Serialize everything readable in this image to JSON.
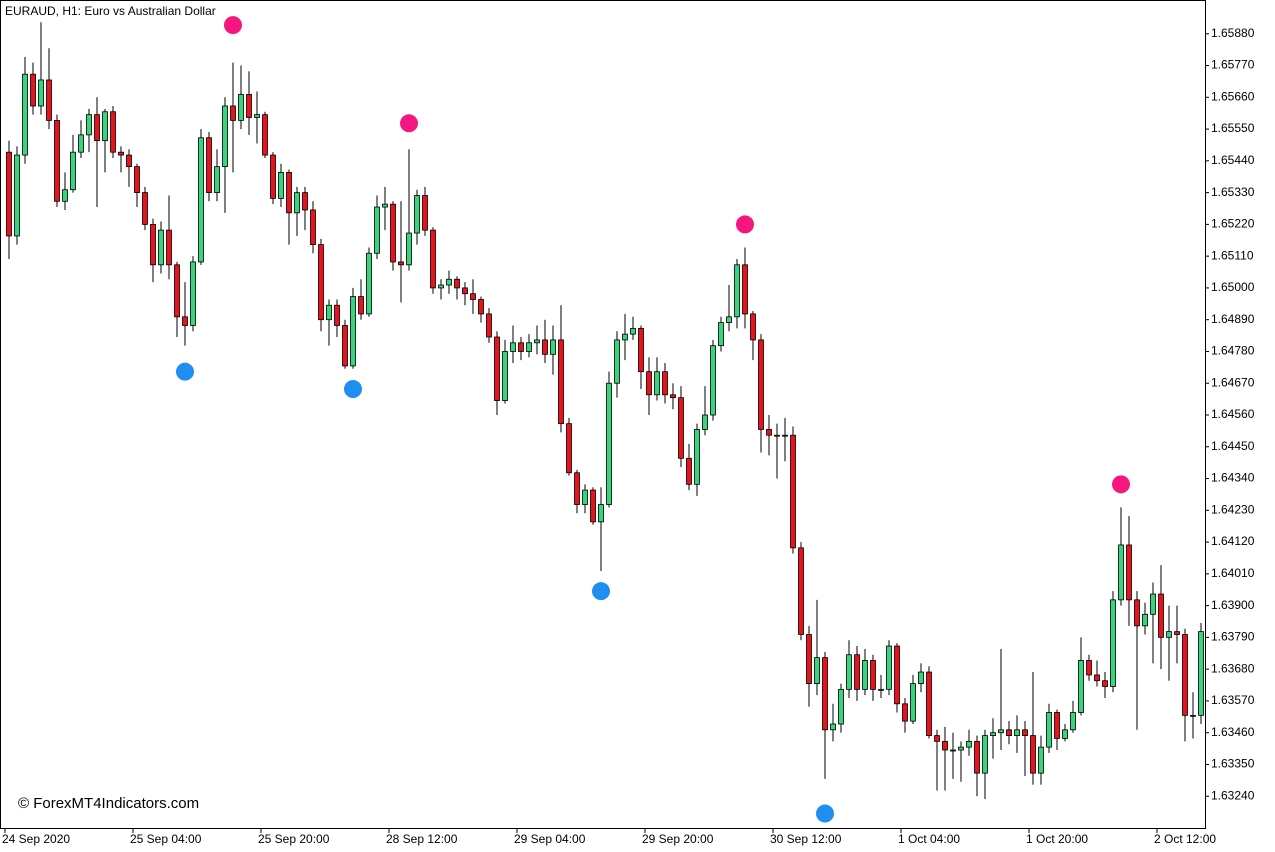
{
  "chart_data": {
    "type": "candlestick",
    "title": "EURAUD, H1:  Euro vs Australian Dollar",
    "watermark": "© ForexMT4Indicators.com",
    "ohlc": [
      [
        1.6547,
        1.6551,
        1.651,
        1.6518
      ],
      [
        1.6518,
        1.6549,
        1.6515,
        1.6546
      ],
      [
        1.6546,
        1.658,
        1.6543,
        1.6574
      ],
      [
        1.6574,
        1.6578,
        1.656,
        1.6563
      ],
      [
        1.6563,
        1.6592,
        1.656,
        1.6572
      ],
      [
        1.6572,
        1.6583,
        1.6555,
        1.6558
      ],
      [
        1.6558,
        1.656,
        1.6528,
        1.653
      ],
      [
        1.653,
        1.654,
        1.6527,
        1.6534
      ],
      [
        1.6534,
        1.6553,
        1.6533,
        1.6547
      ],
      [
        1.6547,
        1.6558,
        1.6545,
        1.6553
      ],
      [
        1.6553,
        1.6562,
        1.6547,
        1.656
      ],
      [
        1.656,
        1.6566,
        1.6528,
        1.6551
      ],
      [
        1.6551,
        1.6562,
        1.654,
        1.6561
      ],
      [
        1.6561,
        1.6563,
        1.6545,
        1.6547
      ],
      [
        1.6547,
        1.6549,
        1.654,
        1.6546
      ],
      [
        1.6546,
        1.6548,
        1.6535,
        1.6542
      ],
      [
        1.6542,
        1.6543,
        1.6528,
        1.6533
      ],
      [
        1.6533,
        1.6535,
        1.652,
        1.6522
      ],
      [
        1.6522,
        1.6524,
        1.6502,
        1.6508
      ],
      [
        1.6508,
        1.6523,
        1.6505,
        1.652
      ],
      [
        1.652,
        1.6532,
        1.6503,
        1.6508
      ],
      [
        1.6508,
        1.6509,
        1.6483,
        1.649
      ],
      [
        1.649,
        1.6502,
        1.648,
        1.6487
      ],
      [
        1.6487,
        1.6511,
        1.6485,
        1.6509
      ],
      [
        1.6509,
        1.6555,
        1.6508,
        1.6552
      ],
      [
        1.6552,
        1.6554,
        1.653,
        1.6533
      ],
      [
        1.6533,
        1.6548,
        1.653,
        1.6542
      ],
      [
        1.6542,
        1.6566,
        1.6526,
        1.6563
      ],
      [
        1.6563,
        1.6578,
        1.654,
        1.6558
      ],
      [
        1.6558,
        1.6577,
        1.6555,
        1.6567
      ],
      [
        1.6567,
        1.6575,
        1.6553,
        1.6559
      ],
      [
        1.6559,
        1.6568,
        1.655,
        1.656
      ],
      [
        1.656,
        1.6561,
        1.6545,
        1.6546
      ],
      [
        1.6546,
        1.6547,
        1.6529,
        1.6531
      ],
      [
        1.6531,
        1.6543,
        1.6528,
        1.654
      ],
      [
        1.654,
        1.6541,
        1.6515,
        1.6526
      ],
      [
        1.6526,
        1.6535,
        1.6518,
        1.6533
      ],
      [
        1.6533,
        1.6535,
        1.652,
        1.6527
      ],
      [
        1.6527,
        1.653,
        1.6512,
        1.6515
      ],
      [
        1.6515,
        1.6517,
        1.6485,
        1.6489
      ],
      [
        1.6489,
        1.6496,
        1.648,
        1.6494
      ],
      [
        1.6494,
        1.6496,
        1.6483,
        1.6487
      ],
      [
        1.6487,
        1.6489,
        1.6472,
        1.6473
      ],
      [
        1.6473,
        1.65,
        1.6472,
        1.6497
      ],
      [
        1.6497,
        1.6503,
        1.6489,
        1.6491
      ],
      [
        1.6491,
        1.6514,
        1.649,
        1.6512
      ],
      [
        1.6512,
        1.6532,
        1.651,
        1.6528
      ],
      [
        1.6528,
        1.6535,
        1.652,
        1.6529
      ],
      [
        1.6529,
        1.653,
        1.6506,
        1.6509
      ],
      [
        1.6509,
        1.653,
        1.6495,
        1.6508
      ],
      [
        1.6508,
        1.6548,
        1.6506,
        1.6519
      ],
      [
        1.6519,
        1.6534,
        1.6515,
        1.6532
      ],
      [
        1.6532,
        1.6535,
        1.6518,
        1.652
      ],
      [
        1.652,
        1.6521,
        1.6498,
        1.65
      ],
      [
        1.65,
        1.6503,
        1.6496,
        1.6501
      ],
      [
        1.6501,
        1.6506,
        1.6498,
        1.6503
      ],
      [
        1.6503,
        1.6504,
        1.6496,
        1.65
      ],
      [
        1.65,
        1.6502,
        1.6494,
        1.6498
      ],
      [
        1.6498,
        1.6503,
        1.6491,
        1.6496
      ],
      [
        1.6496,
        1.6497,
        1.6488,
        1.6491
      ],
      [
        1.6491,
        1.6493,
        1.6481,
        1.6483
      ],
      [
        1.6483,
        1.6485,
        1.6456,
        1.6461
      ],
      [
        1.6461,
        1.6482,
        1.646,
        1.6478
      ],
      [
        1.6478,
        1.6487,
        1.6474,
        1.6481
      ],
      [
        1.6481,
        1.6483,
        1.6475,
        1.6478
      ],
      [
        1.6478,
        1.6484,
        1.6476,
        1.6481
      ],
      [
        1.6481,
        1.6487,
        1.6477,
        1.6482
      ],
      [
        1.6482,
        1.6489,
        1.6474,
        1.6477
      ],
      [
        1.6477,
        1.6487,
        1.647,
        1.6482
      ],
      [
        1.6482,
        1.6494,
        1.645,
        1.6453
      ],
      [
        1.6453,
        1.6455,
        1.6435,
        1.6436
      ],
      [
        1.6436,
        1.6437,
        1.6422,
        1.6425
      ],
      [
        1.6425,
        1.6432,
        1.6422,
        1.643
      ],
      [
        1.643,
        1.6431,
        1.6418,
        1.6419
      ],
      [
        1.6419,
        1.6431,
        1.6402,
        1.6425
      ],
      [
        1.6425,
        1.6471,
        1.6424,
        1.6467
      ],
      [
        1.6467,
        1.6485,
        1.6462,
        1.6482
      ],
      [
        1.6482,
        1.6491,
        1.6475,
        1.6484
      ],
      [
        1.6484,
        1.649,
        1.6482,
        1.6486
      ],
      [
        1.6486,
        1.6487,
        1.6465,
        1.6471
      ],
      [
        1.6471,
        1.6476,
        1.6456,
        1.6463
      ],
      [
        1.6463,
        1.6476,
        1.6461,
        1.6471
      ],
      [
        1.6471,
        1.6474,
        1.646,
        1.6463
      ],
      [
        1.6463,
        1.6467,
        1.6458,
        1.6462
      ],
      [
        1.6462,
        1.6466,
        1.6438,
        1.6441
      ],
      [
        1.6441,
        1.6446,
        1.643,
        1.6432
      ],
      [
        1.6432,
        1.6453,
        1.6428,
        1.6451
      ],
      [
        1.6451,
        1.6466,
        1.6449,
        1.6456
      ],
      [
        1.6456,
        1.6482,
        1.6454,
        1.648
      ],
      [
        1.648,
        1.649,
        1.6478,
        1.6488
      ],
      [
        1.6488,
        1.6501,
        1.6485,
        1.649
      ],
      [
        1.649,
        1.651,
        1.6486,
        1.6508
      ],
      [
        1.6508,
        1.6514,
        1.6486,
        1.6491
      ],
      [
        1.6491,
        1.6492,
        1.6475,
        1.6482
      ],
      [
        1.6482,
        1.6484,
        1.6443,
        1.6451
      ],
      [
        1.6451,
        1.6456,
        1.6442,
        1.6449
      ],
      [
        1.6449,
        1.6453,
        1.6434,
        1.6449
      ],
      [
        1.6449,
        1.6455,
        1.644,
        1.6449
      ],
      [
        1.6449,
        1.6452,
        1.6408,
        1.641
      ],
      [
        1.641,
        1.6412,
        1.6378,
        1.638
      ],
      [
        1.638,
        1.6383,
        1.6355,
        1.6363
      ],
      [
        1.6363,
        1.6392,
        1.6359,
        1.6372
      ],
      [
        1.6372,
        1.6374,
        1.633,
        1.6347
      ],
      [
        1.6347,
        1.6356,
        1.6343,
        1.6349
      ],
      [
        1.6349,
        1.6363,
        1.6346,
        1.6361
      ],
      [
        1.6361,
        1.6378,
        1.6358,
        1.6373
      ],
      [
        1.6373,
        1.6376,
        1.6357,
        1.6361
      ],
      [
        1.6361,
        1.6375,
        1.6359,
        1.6371
      ],
      [
        1.6371,
        1.6373,
        1.6357,
        1.6361
      ],
      [
        1.6361,
        1.6366,
        1.6358,
        1.6361
      ],
      [
        1.6361,
        1.6378,
        1.6359,
        1.6376
      ],
      [
        1.6376,
        1.6377,
        1.6353,
        1.6356
      ],
      [
        1.6356,
        1.6358,
        1.6346,
        1.635
      ],
      [
        1.635,
        1.6366,
        1.6349,
        1.6363
      ],
      [
        1.6363,
        1.637,
        1.636,
        1.6367
      ],
      [
        1.6367,
        1.6369,
        1.6344,
        1.6345
      ],
      [
        1.6345,
        1.6347,
        1.6326,
        1.6343
      ],
      [
        1.6343,
        1.6348,
        1.6326,
        1.634
      ],
      [
        1.634,
        1.6346,
        1.633,
        1.634
      ],
      [
        1.634,
        1.6343,
        1.6329,
        1.6341
      ],
      [
        1.6341,
        1.6347,
        1.6338,
        1.6343
      ],
      [
        1.6343,
        1.6345,
        1.6324,
        1.6332
      ],
      [
        1.6332,
        1.6347,
        1.6323,
        1.6345
      ],
      [
        1.6345,
        1.6351,
        1.6337,
        1.6346
      ],
      [
        1.6346,
        1.6375,
        1.634,
        1.6347
      ],
      [
        1.6347,
        1.635,
        1.6342,
        1.6345
      ],
      [
        1.6345,
        1.6352,
        1.6339,
        1.6347
      ],
      [
        1.6347,
        1.635,
        1.6331,
        1.6345
      ],
      [
        1.6345,
        1.6367,
        1.6328,
        1.6332
      ],
      [
        1.6332,
        1.6345,
        1.6328,
        1.6341
      ],
      [
        1.6341,
        1.6356,
        1.6339,
        1.6353
      ],
      [
        1.6353,
        1.6354,
        1.634,
        1.6344
      ],
      [
        1.6344,
        1.6349,
        1.6343,
        1.6347
      ],
      [
        1.6347,
        1.6357,
        1.6346,
        1.6353
      ],
      [
        1.6353,
        1.6379,
        1.6352,
        1.6371
      ],
      [
        1.6371,
        1.6373,
        1.6364,
        1.6366
      ],
      [
        1.6366,
        1.6371,
        1.6362,
        1.6364
      ],
      [
        1.6364,
        1.6367,
        1.6358,
        1.6362
      ],
      [
        1.6362,
        1.6395,
        1.636,
        1.6392
      ],
      [
        1.6392,
        1.6424,
        1.639,
        1.6411
      ],
      [
        1.6411,
        1.6421,
        1.6383,
        1.6392
      ],
      [
        1.6392,
        1.6395,
        1.6347,
        1.6383
      ],
      [
        1.6383,
        1.6391,
        1.638,
        1.6387
      ],
      [
        1.6387,
        1.6398,
        1.637,
        1.6394
      ],
      [
        1.6394,
        1.6404,
        1.6368,
        1.6379
      ],
      [
        1.6379,
        1.639,
        1.6364,
        1.6381
      ],
      [
        1.6381,
        1.639,
        1.637,
        1.638
      ],
      [
        1.638,
        1.6382,
        1.6343,
        1.6352
      ],
      [
        1.6352,
        1.636,
        1.6344,
        1.6352
      ],
      [
        1.6352,
        1.6384,
        1.6349,
        1.6381
      ]
    ],
    "up_color": "#3ad47a",
    "down_color": "#e8141c",
    "tops": {
      "color": "#f5177f",
      "at": [
        28,
        50,
        92,
        139
      ],
      "values": [
        1.6591,
        1.6557,
        1.6522,
        1.6432
      ]
    },
    "bottoms": {
      "color": "#1e8ff0",
      "at": [
        22,
        43,
        74,
        102
      ],
      "values": [
        1.6471,
        1.6465,
        1.6395,
        1.6318
      ]
    },
    "ylim": [
      1.6313,
      1.6599
    ],
    "yticks": [
      {
        "value": 1.6588,
        "label": "1.65880"
      },
      {
        "value": 1.6577,
        "label": "1.65770"
      },
      {
        "value": 1.6566,
        "label": "1.65660"
      },
      {
        "value": 1.6555,
        "label": "1.65550"
      },
      {
        "value": 1.6544,
        "label": "1.65440"
      },
      {
        "value": 1.6533,
        "label": "1.65330"
      },
      {
        "value": 1.6522,
        "label": "1.65220"
      },
      {
        "value": 1.6511,
        "label": "1.65110"
      },
      {
        "value": 1.65,
        "label": "1.65000"
      },
      {
        "value": 1.6489,
        "label": "1.64890"
      },
      {
        "value": 1.6478,
        "label": "1.64780"
      },
      {
        "value": 1.6467,
        "label": "1.64670"
      },
      {
        "value": 1.6456,
        "label": "1.64560"
      },
      {
        "value": 1.6445,
        "label": "1.64450"
      },
      {
        "value": 1.6434,
        "label": "1.64340"
      },
      {
        "value": 1.6423,
        "label": "1.64230"
      },
      {
        "value": 1.6412,
        "label": "1.64120"
      },
      {
        "value": 1.6401,
        "label": "1.64010"
      },
      {
        "value": 1.639,
        "label": "1.63900"
      },
      {
        "value": 1.6379,
        "label": "1.63790"
      },
      {
        "value": 1.6368,
        "label": "1.63680"
      },
      {
        "value": 1.6357,
        "label": "1.63570"
      },
      {
        "value": 1.6346,
        "label": "1.63460"
      },
      {
        "value": 1.6335,
        "label": "1.63350"
      },
      {
        "value": 1.6324,
        "label": "1.63240"
      }
    ],
    "xticks": [
      {
        "value": 0,
        "label": "24 Sep 2020"
      },
      {
        "value": 16,
        "label": "25 Sep 04:00"
      },
      {
        "value": 32,
        "label": "25 Sep 20:00"
      },
      {
        "value": 48,
        "label": "28 Sep 12:00"
      },
      {
        "value": 64,
        "label": "29 Sep 04:00"
      },
      {
        "value": 80,
        "label": "29 Sep 20:00"
      },
      {
        "value": 96,
        "label": "30 Sep 12:00"
      },
      {
        "value": 112,
        "label": "1 Oct 04:00"
      },
      {
        "value": 128,
        "label": "1 Oct 20:00"
      },
      {
        "value": 144,
        "label": "2 Oct 12:00"
      }
    ]
  }
}
